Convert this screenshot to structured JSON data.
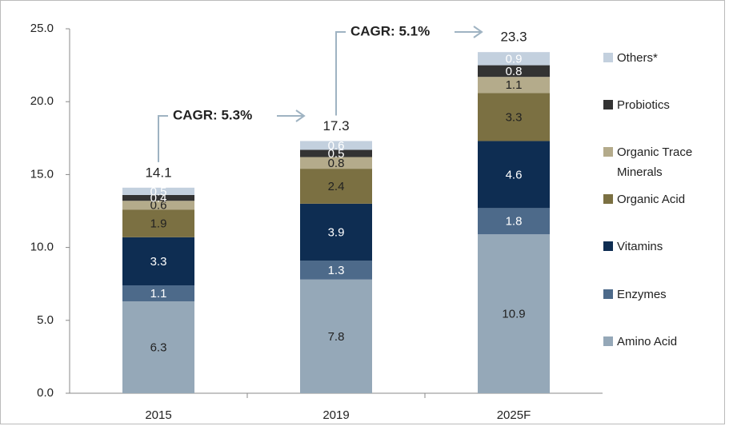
{
  "chart_data": {
    "type": "stacked_bar",
    "categories": [
      "2015",
      "2019",
      "2025F"
    ],
    "series": [
      {
        "name": "Amino Acid",
        "color": "#95a8b8",
        "label_color": "#222222",
        "values": [
          6.3,
          7.8,
          10.9
        ]
      },
      {
        "name": "Enzymes",
        "color": "#4d6a8a",
        "label_color": "#ffffff",
        "values": [
          1.1,
          1.3,
          1.8
        ]
      },
      {
        "name": "Vitamins",
        "color": "#0e2d52",
        "label_color": "#ffffff",
        "values": [
          3.3,
          3.9,
          4.6
        ]
      },
      {
        "name": "Organic Acid",
        "color": "#7b7042",
        "label_color": "#222222",
        "values": [
          1.9,
          2.4,
          3.3
        ]
      },
      {
        "name": "Organic Trace Minerals",
        "color": "#b4ab8b",
        "label_color": "#222222",
        "values": [
          0.6,
          0.8,
          1.1
        ]
      },
      {
        "name": "Probiotics",
        "color": "#333333",
        "label_color": "#ffffff",
        "values": [
          0.4,
          0.5,
          0.8
        ]
      },
      {
        "name": "Others*",
        "color": "#c3d0de",
        "label_color": "#ffffff",
        "values": [
          0.5,
          0.6,
          0.9
        ]
      }
    ],
    "totals": [
      14.1,
      17.3,
      23.3
    ],
    "annotations": [
      "CAGR: 5.3%",
      "CAGR: 5.1%"
    ],
    "ylim": [
      0,
      25
    ],
    "yticks": [
      {
        "value": 0,
        "label": "0.0"
      },
      {
        "value": 5,
        "label": "5.0"
      },
      {
        "value": 10,
        "label": "10.0"
      },
      {
        "value": 15,
        "label": "15.0"
      },
      {
        "value": 20,
        "label": "20.0"
      },
      {
        "value": 25,
        "label": "25.0"
      }
    ],
    "legend": "right"
  }
}
